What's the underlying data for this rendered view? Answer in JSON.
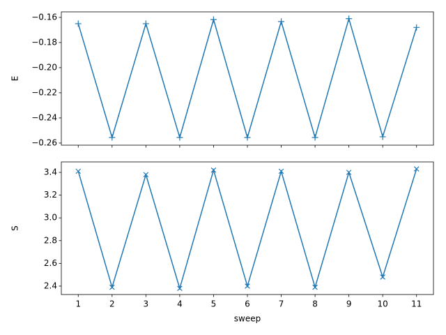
{
  "chart_data": [
    {
      "type": "line",
      "ylabel": "E",
      "marker": "+",
      "x": [
        1,
        2,
        3,
        4,
        5,
        6,
        7,
        8,
        9,
        10,
        11
      ],
      "series": [
        {
          "color": "#1f77b4",
          "values": [
            -0.165,
            -0.2556,
            -0.165,
            -0.2556,
            -0.1617,
            -0.2556,
            -0.1633,
            -0.2556,
            -0.161,
            -0.255,
            -0.168
          ]
        }
      ],
      "xlim": [
        0.5,
        11.5
      ],
      "xticks": [
        1,
        2,
        3,
        4,
        5,
        6,
        7,
        8,
        9,
        10,
        11
      ],
      "ylim": [
        -0.2617,
        -0.1556
      ],
      "yticks": [
        {
          "value": -0.26,
          "label": "−0.26"
        },
        {
          "value": -0.24,
          "label": "−0.24"
        },
        {
          "value": -0.22,
          "label": "−0.22"
        },
        {
          "value": -0.2,
          "label": "−0.20"
        },
        {
          "value": -0.18,
          "label": "−0.18"
        },
        {
          "value": -0.16,
          "label": "−0.16"
        }
      ]
    },
    {
      "type": "line",
      "ylabel": "S",
      "xlabel": "sweep",
      "marker": "x",
      "x": [
        1,
        2,
        3,
        4,
        5,
        6,
        7,
        8,
        9,
        10,
        11
      ],
      "series": [
        {
          "color": "#1f77b4",
          "values": [
            3.41,
            2.39,
            3.38,
            2.38,
            3.42,
            2.4,
            3.41,
            2.39,
            3.4,
            2.48,
            3.43
          ]
        }
      ],
      "xlim": [
        0.5,
        11.5
      ],
      "xticks": [
        1,
        2,
        3,
        4,
        5,
        6,
        7,
        8,
        9,
        10,
        11
      ],
      "ylim": [
        2.326,
        3.492
      ],
      "yticks": [
        {
          "value": 2.4,
          "label": "2.4"
        },
        {
          "value": 2.6,
          "label": "2.6"
        },
        {
          "value": 2.8,
          "label": "2.8"
        },
        {
          "value": 3.0,
          "label": "3.0"
        },
        {
          "value": 3.2,
          "label": "3.2"
        },
        {
          "value": 3.4,
          "label": "3.4"
        }
      ]
    }
  ]
}
